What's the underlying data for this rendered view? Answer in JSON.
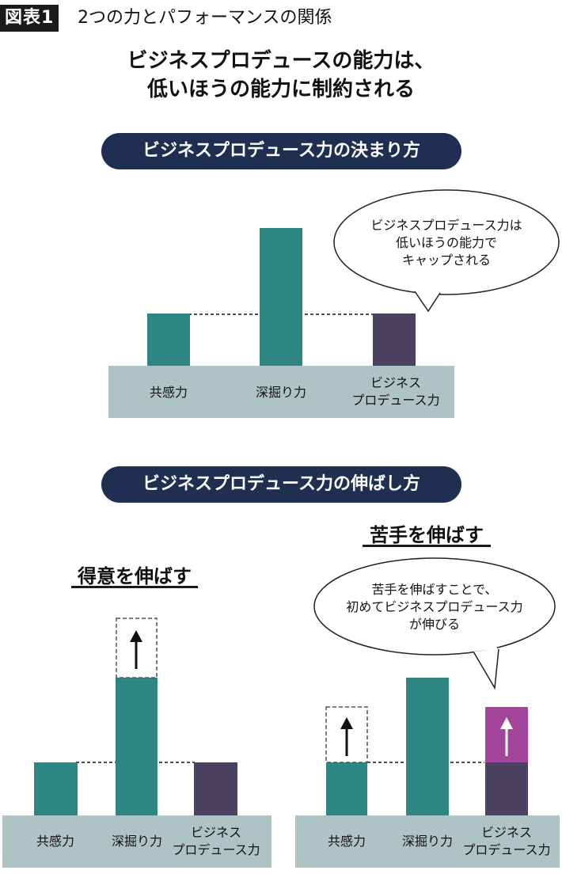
{
  "header": {
    "tag": "図表1",
    "title": "2つの力とパフォーマンスの関係"
  },
  "headline": {
    "line1": "ビジネスプロデュースの能力は、",
    "line2": "低いほうの能力に制約される"
  },
  "section1": {
    "pill": "ビジネスプロデュース力の決まり方",
    "bubble": [
      "ビジネスプロデュース力は",
      "低いほうの能力で",
      "キャップされる"
    ],
    "labels": {
      "empathy": "共感力",
      "deep_dive": "深掘り力",
      "bp_line1": "ビジネス",
      "bp_line2": "プロデュース力"
    }
  },
  "section2": {
    "pill": "ビジネスプロデュース力の伸ばし方",
    "left": {
      "heading": "得意を伸ばす",
      "labels": {
        "empathy": "共感力",
        "deep_dive": "深掘り力",
        "bp_line1": "ビジネス",
        "bp_line2": "プロデュース力"
      }
    },
    "right": {
      "heading": "苦手を伸ばす",
      "bubble": [
        "苦手を伸ばすことで、",
        "初めてビジネスプロデュース力",
        "が伸びる"
      ],
      "labels": {
        "empathy": "共感力",
        "deep_dive": "深掘り力",
        "bp_line1": "ビジネス",
        "bp_line2": "プロデュース力"
      }
    }
  },
  "colors": {
    "teal": "#2e8683",
    "purple": "#4b4262",
    "magenta": "#a2459a",
    "base": "#aec3c4",
    "navy": "#1f2f52"
  }
}
